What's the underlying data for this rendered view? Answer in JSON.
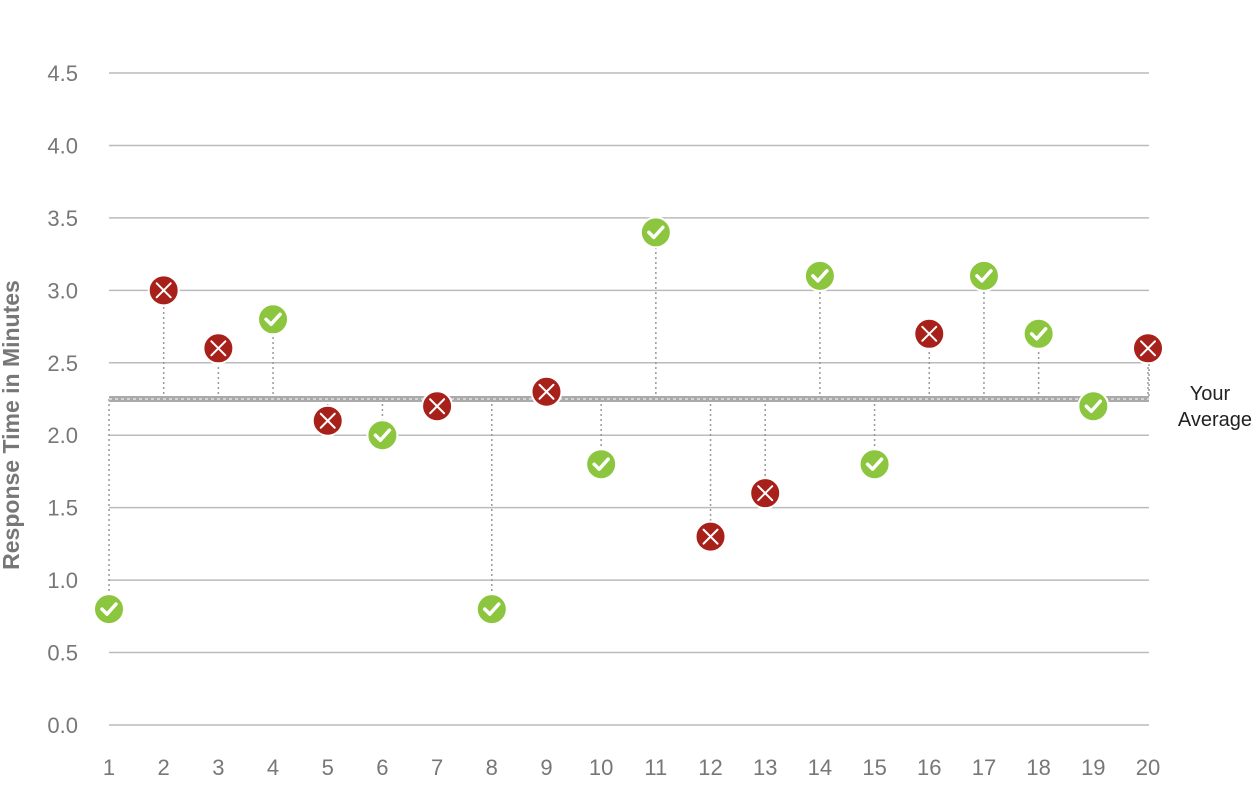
{
  "chart_data": {
    "type": "scatter",
    "title": "",
    "xlabel": "",
    "ylabel": "Response Time in Minutes",
    "x": [
      1,
      2,
      3,
      4,
      5,
      6,
      7,
      8,
      9,
      10,
      11,
      12,
      13,
      14,
      15,
      16,
      17,
      18,
      19,
      20
    ],
    "values": [
      0.8,
      3.0,
      2.6,
      2.8,
      2.1,
      2.0,
      2.2,
      0.8,
      2.3,
      1.8,
      3.4,
      1.3,
      1.6,
      3.1,
      1.8,
      2.7,
      3.1,
      2.7,
      2.2,
      2.6
    ],
    "status": [
      "ok",
      "miss",
      "miss",
      "ok",
      "miss",
      "ok",
      "miss",
      "ok",
      "miss",
      "ok",
      "ok",
      "miss",
      "miss",
      "ok",
      "ok",
      "miss",
      "ok",
      "ok",
      "ok",
      "miss"
    ],
    "status_icons": {
      "ok": "check-icon",
      "miss": "x-icon"
    },
    "status_colors": {
      "ok": "#8cc63f",
      "miss": "#a8201a"
    },
    "ylim": [
      0,
      4.5
    ],
    "yticks": [
      "0.0",
      "0.5",
      "1.0",
      "1.5",
      "2.0",
      "2.5",
      "3.0",
      "3.5",
      "4.0",
      "4.5"
    ],
    "xticks": [
      "1",
      "2",
      "3",
      "4",
      "5",
      "6",
      "7",
      "8",
      "9",
      "10",
      "11",
      "12",
      "13",
      "14",
      "15",
      "16",
      "17",
      "18",
      "19",
      "20"
    ],
    "average": 2.25,
    "average_label": [
      "Your",
      "Average"
    ],
    "grid": true,
    "colors": {
      "grid": "#bbbbbb",
      "average_line": "#aaaaaa",
      "stem": "#999999"
    }
  }
}
